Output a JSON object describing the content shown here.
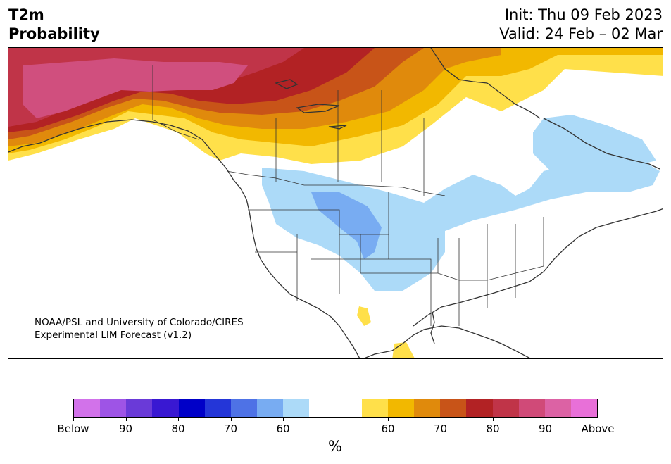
{
  "title": {
    "line1": "T2m",
    "line2": "Probability"
  },
  "init_valid": {
    "init": "Init: Thu 09 Feb 2023",
    "valid": "Valid: 24 Feb – 02 Mar"
  },
  "credit": {
    "line1": "NOAA/PSL and University of Colorado/CIRES",
    "line2": "Experimental LIM Forecast (v1.2)"
  },
  "colorbar": {
    "colors": [
      "#d272ea",
      "#9e54e6",
      "#6a3ad8",
      "#3918d2",
      "#0000c8",
      "#2436d8",
      "#4e72e6",
      "#78acf2",
      "#acdaf8",
      "#ffffff",
      "#ffffff",
      "#ffe04a",
      "#f2b800",
      "#e08a0c",
      "#c85418",
      "#b22224",
      "#c03448",
      "#d04a78",
      "#dc62a4",
      "#e870d8"
    ],
    "ticks": [
      "Below",
      "90",
      "80",
      "70",
      "60",
      "60",
      "70",
      "80",
      "90",
      "Above"
    ],
    "unit": "%"
  },
  "palette": {
    "above90": "#d04f7e",
    "above80": "#c03448",
    "above70": "#b22224",
    "above60": "#c85418",
    "above55": "#e08a0c",
    "above50": "#f2b800",
    "above45": "#ffe04a",
    "below45": "#acdaf8",
    "below55": "#78acf2",
    "coast": "#333333"
  }
}
